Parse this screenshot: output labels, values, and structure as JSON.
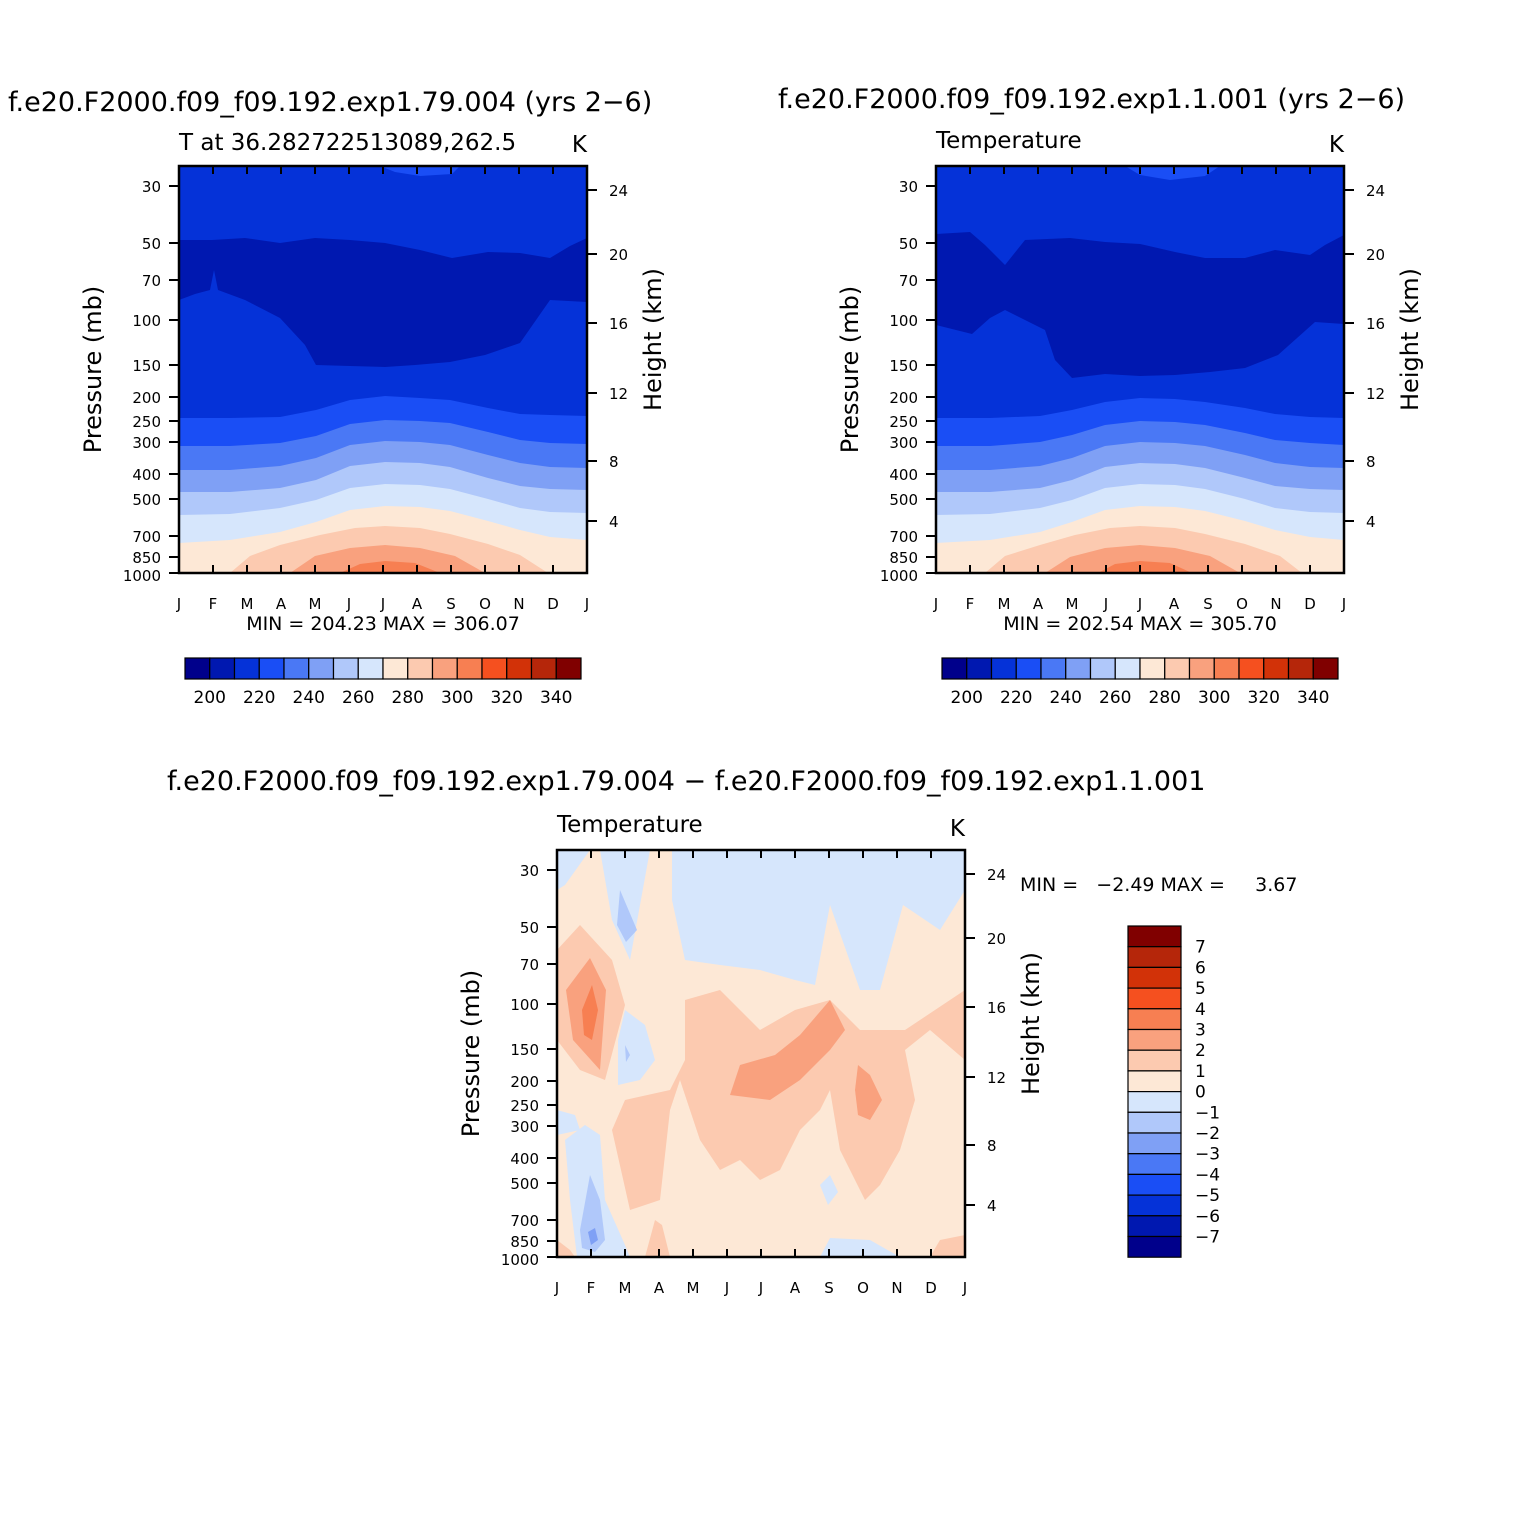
{
  "figure": {
    "panel_left_title": "f.e20.F2000.f09_f09.192.exp1.79.004 (yrs 2−6)",
    "panel_right_title": "f.e20.F2000.f09_f09.192.exp1.1.001 (yrs 2−6)",
    "panel_bottom_title": "f.e20.F2000.f09_f09.192.exp1.79.004 − f.e20.F2000.f09_f09.192.exp1.1.001"
  },
  "colors": {
    "abs_levels": [
      "#00008b",
      "#0018b0",
      "#0532d8",
      "#1a4ef5",
      "#4a78f5",
      "#7fa0f5",
      "#b0c8fa",
      "#d6e6fc",
      "#fde8d6",
      "#fccab0",
      "#f9a17e",
      "#f77f52",
      "#f5501f",
      "#d23208",
      "#b5260a",
      "#800000"
    ],
    "diff_levels": [
      "#00008b",
      "#0018b0",
      "#0532d8",
      "#1a4ef5",
      "#4a78f5",
      "#7fa0f5",
      "#b0c8fa",
      "#d6e6fc",
      "#fde8d6",
      "#fccab0",
      "#f9a17e",
      "#f77f52",
      "#f5501f",
      "#d23208",
      "#b5260a",
      "#800000"
    ]
  },
  "chart_data": [
    {
      "type": "contour",
      "subtitle_left": "T at 36.282722513089,262.5",
      "subtitle_right": "K",
      "xlabel": "",
      "ylabel": "Pressure (mb)",
      "ylabel_right": "Height (km)",
      "x_ticks": [
        "J",
        "F",
        "M",
        "A",
        "M",
        "J",
        "J",
        "A",
        "S",
        "O",
        "N",
        "D",
        "J"
      ],
      "y_ticks": [
        "30",
        "50",
        "70",
        "100",
        "150",
        "200",
        "250",
        "300",
        "400",
        "500",
        "700",
        "850",
        "1000"
      ],
      "y_ticks_right": [
        "24",
        "20",
        "16",
        "12",
        "8",
        "4"
      ],
      "min_max_text": "MIN = 204.23 MAX = 306.07",
      "min": 204.23,
      "max": 306.07,
      "colorbar_levels": [
        "200",
        "220",
        "240",
        "260",
        "280",
        "300",
        "320",
        "340"
      ],
      "contour_bands_K": [
        {
          "level": "<210",
          "region": "40-90 mb core, broadest Jun-Oct"
        },
        {
          "level": "210-220",
          "region": "above 50 mb and 90-250 mb"
        },
        {
          "level": "220-230",
          "region": "250-300 mb"
        },
        {
          "level": "230-240",
          "region": "300-400 mb"
        },
        {
          "level": "240-250",
          "region": "400-500 mb"
        },
        {
          "level": "250-260",
          "region": "500-600 mb"
        },
        {
          "level": "260-270",
          "region": "600-720 mb"
        },
        {
          "level": "270-280",
          "region": "720-1000 mb"
        },
        {
          "level": "280-290",
          "region": "800-1000 mb, Apr-Oct"
        },
        {
          "level": "290-300",
          "region": "near surface, Jun-Sep"
        },
        {
          "level": ">300",
          "region": "surface, Jul"
        }
      ]
    },
    {
      "type": "contour",
      "subtitle_left": "Temperature",
      "subtitle_right": "K",
      "xlabel": "",
      "ylabel": "Pressure (mb)",
      "ylabel_right": "Height (km)",
      "x_ticks": [
        "J",
        "F",
        "M",
        "A",
        "M",
        "J",
        "J",
        "A",
        "S",
        "O",
        "N",
        "D",
        "J"
      ],
      "y_ticks": [
        "30",
        "50",
        "70",
        "100",
        "150",
        "200",
        "250",
        "300",
        "400",
        "500",
        "700",
        "850",
        "1000"
      ],
      "y_ticks_right": [
        "24",
        "20",
        "16",
        "12",
        "8",
        "4"
      ],
      "min_max_text": "MIN = 202.54 MAX = 305.70",
      "min": 202.54,
      "max": 305.7,
      "colorbar_levels": [
        "200",
        "220",
        "240",
        "260",
        "280",
        "300",
        "320",
        "340"
      ]
    },
    {
      "type": "contour",
      "subtitle_left": "Temperature",
      "subtitle_right": "K",
      "xlabel": "",
      "ylabel": "Pressure (mb)",
      "ylabel_right": "Height (km)",
      "x_ticks": [
        "J",
        "F",
        "M",
        "A",
        "M",
        "J",
        "J",
        "A",
        "S",
        "O",
        "N",
        "D",
        "J"
      ],
      "y_ticks": [
        "30",
        "50",
        "70",
        "100",
        "150",
        "200",
        "250",
        "300",
        "400",
        "500",
        "700",
        "850",
        "1000"
      ],
      "y_ticks_right": [
        "24",
        "20",
        "16",
        "12",
        "8",
        "4"
      ],
      "min_max_text": "MIN =   −2.49 MAX =     3.67",
      "min": -2.49,
      "max": 3.67,
      "colorbar_levels": [
        "7",
        "6",
        "5",
        "4",
        "3",
        "2",
        "1",
        "0",
        "−1",
        "−2",
        "−3",
        "−4",
        "−5",
        "−6",
        "−7"
      ]
    }
  ]
}
